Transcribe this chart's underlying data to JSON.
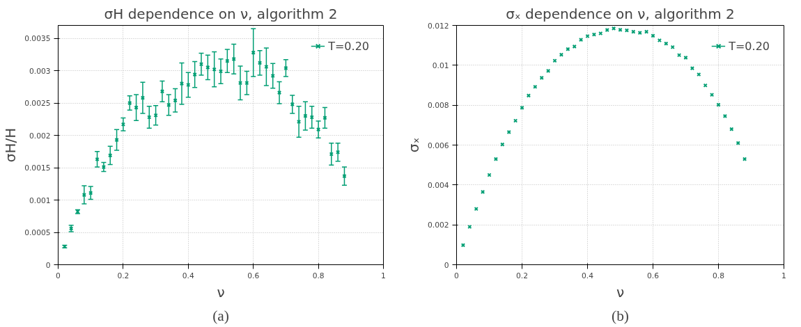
{
  "chart_data": [
    {
      "type": "scatter",
      "title": "σH dependence on ν, algorithm 2",
      "xlabel": "ν",
      "ylabel": "σH/H",
      "annotations": [
        "(a)"
      ],
      "x": [
        0.02,
        0.04,
        0.06,
        0.08,
        0.1,
        0.12,
        0.14,
        0.16,
        0.18,
        0.2,
        0.22,
        0.24,
        0.26,
        0.28,
        0.3,
        0.32,
        0.34,
        0.36,
        0.38,
        0.4,
        0.42,
        0.44,
        0.46,
        0.48,
        0.5,
        0.52,
        0.54,
        0.56,
        0.58,
        0.6,
        0.62,
        0.64,
        0.66,
        0.68,
        0.7,
        0.72,
        0.74,
        0.76,
        0.78,
        0.8,
        0.82,
        0.84,
        0.86,
        0.88
      ],
      "series": [
        {
          "name": "T=0.20",
          "color": "#009e73",
          "values": [
            0.00028,
            0.00056,
            0.00082,
            0.00108,
            0.00111,
            0.00163,
            0.00151,
            0.00169,
            0.00193,
            0.00217,
            0.0025,
            0.00243,
            0.00258,
            0.00228,
            0.00231,
            0.00268,
            0.00247,
            0.00254,
            0.0028,
            0.00278,
            0.00294,
            0.0031,
            0.00305,
            0.00302,
            0.00299,
            0.00315,
            0.00318,
            0.00281,
            0.00281,
            0.00328,
            0.00312,
            0.00306,
            0.00292,
            0.00266,
            0.00304,
            0.00248,
            0.00221,
            0.0023,
            0.00228,
            0.00209,
            0.00227,
            0.00171,
            0.00174,
            0.00137
          ],
          "errors": [
            2e-05,
            5e-05,
            3e-05,
            0.00014,
            0.0001,
            0.00012,
            7e-05,
            0.00014,
            0.00016,
            0.0001,
            0.00011,
            0.0002,
            0.00024,
            0.00017,
            0.00015,
            0.00016,
            0.00016,
            0.00018,
            0.00032,
            0.00019,
            0.0002,
            0.00017,
            0.00019,
            0.00027,
            0.00019,
            0.00018,
            0.00023,
            0.00026,
            0.00018,
            0.00037,
            0.00019,
            0.00029,
            0.00019,
            0.00017,
            0.00013,
            0.00014,
            0.00024,
            0.00022,
            0.00017,
            0.00013,
            0.00016,
            0.00017,
            0.00014,
            0.00014
          ]
        }
      ],
      "xlim": [
        0,
        1
      ],
      "ylim": [
        0,
        0.0037
      ],
      "xticks": [
        0,
        0.2,
        0.4,
        0.6,
        0.8,
        1
      ],
      "yticks": [
        0,
        0.0005,
        0.001,
        0.0015,
        0.002,
        0.0025,
        0.003,
        0.0035
      ],
      "grid": true,
      "legend": "top right",
      "marker": "cross"
    },
    {
      "type": "scatter",
      "title": "σₓ dependence on ν, algorithm 2",
      "xlabel": "ν",
      "ylabel": "σₓ",
      "annotations": [
        "(b)"
      ],
      "x": [
        0.02,
        0.04,
        0.06,
        0.08,
        0.1,
        0.12,
        0.14,
        0.16,
        0.18,
        0.2,
        0.22,
        0.24,
        0.26,
        0.28,
        0.3,
        0.32,
        0.34,
        0.36,
        0.38,
        0.4,
        0.42,
        0.44,
        0.46,
        0.48,
        0.5,
        0.52,
        0.54,
        0.56,
        0.58,
        0.6,
        0.62,
        0.64,
        0.66,
        0.68,
        0.7,
        0.72,
        0.74,
        0.76,
        0.78,
        0.8,
        0.82,
        0.84,
        0.86,
        0.88
      ],
      "series": [
        {
          "name": "T=0.20",
          "color": "#009e73",
          "values": [
            0.00098,
            0.0019,
            0.0028,
            0.00365,
            0.0045,
            0.0053,
            0.00603,
            0.00665,
            0.00722,
            0.00787,
            0.00848,
            0.00892,
            0.00937,
            0.00972,
            0.01023,
            0.01053,
            0.01081,
            0.01094,
            0.01128,
            0.01146,
            0.01154,
            0.0116,
            0.01177,
            0.01185,
            0.01178,
            0.01175,
            0.01168,
            0.01163,
            0.01168,
            0.01148,
            0.01125,
            0.01109,
            0.01091,
            0.01051,
            0.01038,
            0.00985,
            0.00954,
            0.00899,
            0.00852,
            0.00802,
            0.00745,
            0.0068,
            0.0061,
            0.0053
          ]
        }
      ],
      "xlim": [
        0,
        1
      ],
      "ylim": [
        0,
        0.012
      ],
      "xticks": [
        0,
        0.2,
        0.4,
        0.6,
        0.8,
        1
      ],
      "yticks": [
        0,
        0.002,
        0.004,
        0.006,
        0.008,
        0.01,
        0.012
      ],
      "grid": true,
      "legend": "top right",
      "marker": "cross"
    }
  ]
}
